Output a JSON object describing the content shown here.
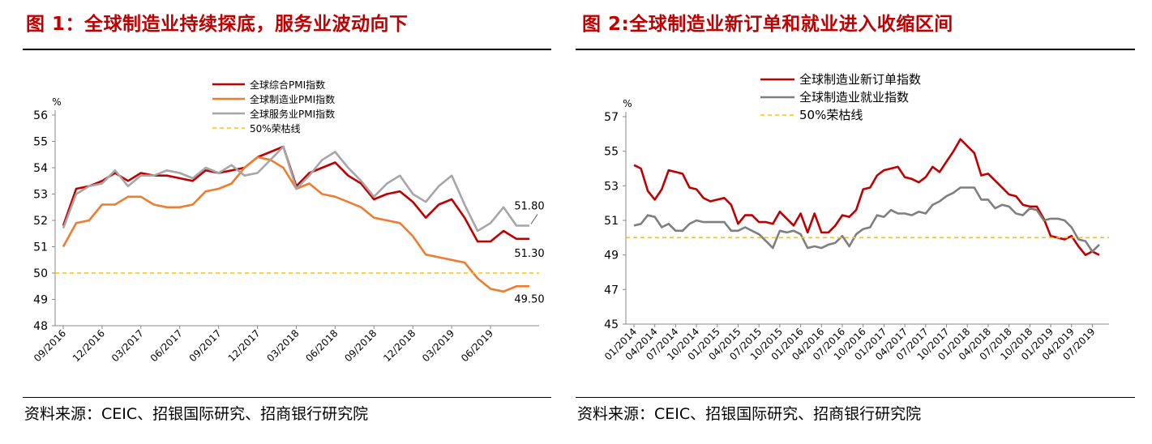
{
  "chart_data": [
    {
      "type": "line",
      "title": "图 1：全球制造业持续探底，服务业波动向下",
      "ylabel": "%",
      "ylim": [
        48,
        56
      ],
      "yticks": [
        48,
        49,
        50,
        51,
        52,
        53,
        54,
        55,
        56
      ],
      "x_tick_labels": [
        "09/2016",
        "12/2016",
        "03/2017",
        "06/2017",
        "09/2017",
        "12/2017",
        "03/2018",
        "06/2018",
        "09/2018",
        "12/2018",
        "03/2019",
        "06/2019"
      ],
      "x_tick_start": "2016-09",
      "x_tick_step_months": 3,
      "x_start": "2016-09",
      "x_end": "2019-09",
      "x_count": 37,
      "legend_position": "top-center",
      "series": [
        {
          "name": "全球综合PMI指数",
          "color": "#c00000",
          "values": [
            51.8,
            53.2,
            53.3,
            53.5,
            53.8,
            53.5,
            53.8,
            53.7,
            53.7,
            53.6,
            53.5,
            53.9,
            53.8,
            53.9,
            54.0,
            54.4,
            54.6,
            54.8,
            53.3,
            53.8,
            54.0,
            54.2,
            53.7,
            53.4,
            52.8,
            53.0,
            53.1,
            52.7,
            52.1,
            52.6,
            52.8,
            52.1,
            51.2,
            51.2,
            51.6,
            51.3,
            51.3
          ],
          "end_label": "51.30"
        },
        {
          "name": "全球制造业PMI指数",
          "color": "#ed7d31",
          "values": [
            51.0,
            51.9,
            52.0,
            52.6,
            52.6,
            52.9,
            52.9,
            52.6,
            52.5,
            52.5,
            52.6,
            53.1,
            53.2,
            53.4,
            54.0,
            54.4,
            54.3,
            54.0,
            53.2,
            53.4,
            53.0,
            52.9,
            52.7,
            52.5,
            52.1,
            52.0,
            51.9,
            51.4,
            50.7,
            50.6,
            50.5,
            50.4,
            49.8,
            49.4,
            49.3,
            49.5,
            49.5
          ],
          "end_label": "49.50"
        },
        {
          "name": "全球服务业PMI指数",
          "color": "#a6a6a6",
          "values": [
            51.7,
            53.0,
            53.3,
            53.4,
            53.9,
            53.3,
            53.7,
            53.7,
            53.9,
            53.8,
            53.6,
            54.0,
            53.8,
            54.1,
            53.7,
            53.8,
            54.3,
            54.8,
            53.2,
            53.7,
            54.3,
            54.6,
            54.0,
            53.5,
            52.9,
            53.4,
            53.7,
            53.0,
            52.7,
            53.3,
            53.7,
            52.6,
            51.6,
            51.9,
            52.5,
            51.8,
            51.8
          ],
          "end_label": "51.80"
        },
        {
          "name": "50%荣枯线",
          "color": "#ffc000",
          "dashed": true,
          "values": [
            50,
            50
          ]
        }
      ],
      "source": "资料来源：CEIC、招银国际研究、招商银行研究院"
    },
    {
      "type": "line",
      "title": "图 2:全球制造业新订单和就业进入收缩区间",
      "ylabel": "%",
      "ylim": [
        45,
        57
      ],
      "yticks": [
        45,
        47,
        49,
        51,
        53,
        55,
        57
      ],
      "x_tick_labels": [
        "01/2014",
        "04/2014",
        "07/2014",
        "10/2014",
        "01/2015",
        "04/2015",
        "07/2015",
        "10/2015",
        "01/2016",
        "04/2016",
        "07/2016",
        "10/2016",
        "01/2017",
        "04/2017",
        "07/2017",
        "10/2017",
        "01/2018",
        "04/2018",
        "07/2018",
        "10/2018",
        "01/2019",
        "04/2019",
        "07/2019"
      ],
      "x_tick_start": "2014-01",
      "x_tick_step_months": 3,
      "x_start": "2014-01",
      "x_end": "2019-08",
      "x_count": 68,
      "legend_position": "top-left",
      "series": [
        {
          "name": "全球制造业新订单指数",
          "color": "#c00000",
          "values": [
            54.2,
            54.0,
            52.7,
            52.2,
            52.8,
            53.9,
            53.8,
            53.7,
            52.9,
            52.8,
            52.3,
            52.1,
            52.2,
            52.3,
            51.9,
            50.8,
            51.3,
            51.3,
            50.9,
            50.9,
            50.8,
            51.5,
            51.1,
            50.7,
            51.4,
            50.3,
            51.4,
            50.3,
            50.3,
            50.7,
            51.3,
            51.2,
            51.6,
            52.8,
            52.9,
            53.6,
            53.9,
            54.0,
            54.1,
            53.5,
            53.4,
            53.2,
            53.5,
            54.1,
            53.8,
            54.4,
            55.0,
            55.7,
            55.3,
            54.9,
            53.6,
            53.7,
            53.3,
            52.9,
            52.5,
            52.4,
            51.9,
            51.8,
            51.8,
            51.1,
            50.1,
            50.0,
            49.9,
            50.1,
            49.5,
            49.0,
            49.2,
            49.0
          ],
          "end_label": ""
        },
        {
          "name": "全球制造业就业指数",
          "color": "#7f7f7f",
          "values": [
            50.7,
            50.8,
            51.3,
            51.2,
            50.6,
            50.8,
            50.4,
            50.4,
            50.8,
            51.0,
            50.9,
            50.9,
            50.9,
            50.9,
            50.4,
            50.4,
            50.6,
            50.4,
            50.2,
            49.8,
            49.4,
            50.4,
            50.3,
            50.4,
            50.2,
            49.4,
            49.5,
            49.4,
            49.6,
            49.7,
            50.1,
            49.5,
            50.2,
            50.5,
            50.6,
            51.3,
            51.2,
            51.6,
            51.4,
            51.4,
            51.3,
            51.5,
            51.4,
            51.9,
            52.1,
            52.4,
            52.6,
            52.9,
            52.9,
            52.9,
            52.2,
            52.2,
            51.7,
            51.9,
            51.8,
            51.4,
            51.3,
            51.7,
            51.6,
            51.0,
            51.1,
            51.1,
            51.0,
            50.6,
            49.9,
            49.8,
            49.2,
            49.6
          ],
          "end_label": ""
        },
        {
          "name": "50%荣枯线",
          "color": "#ffc000",
          "dashed": true,
          "values": [
            50,
            50
          ]
        }
      ],
      "source": "资料来源：CEIC、招银国际研究、招商银行研究院"
    }
  ]
}
